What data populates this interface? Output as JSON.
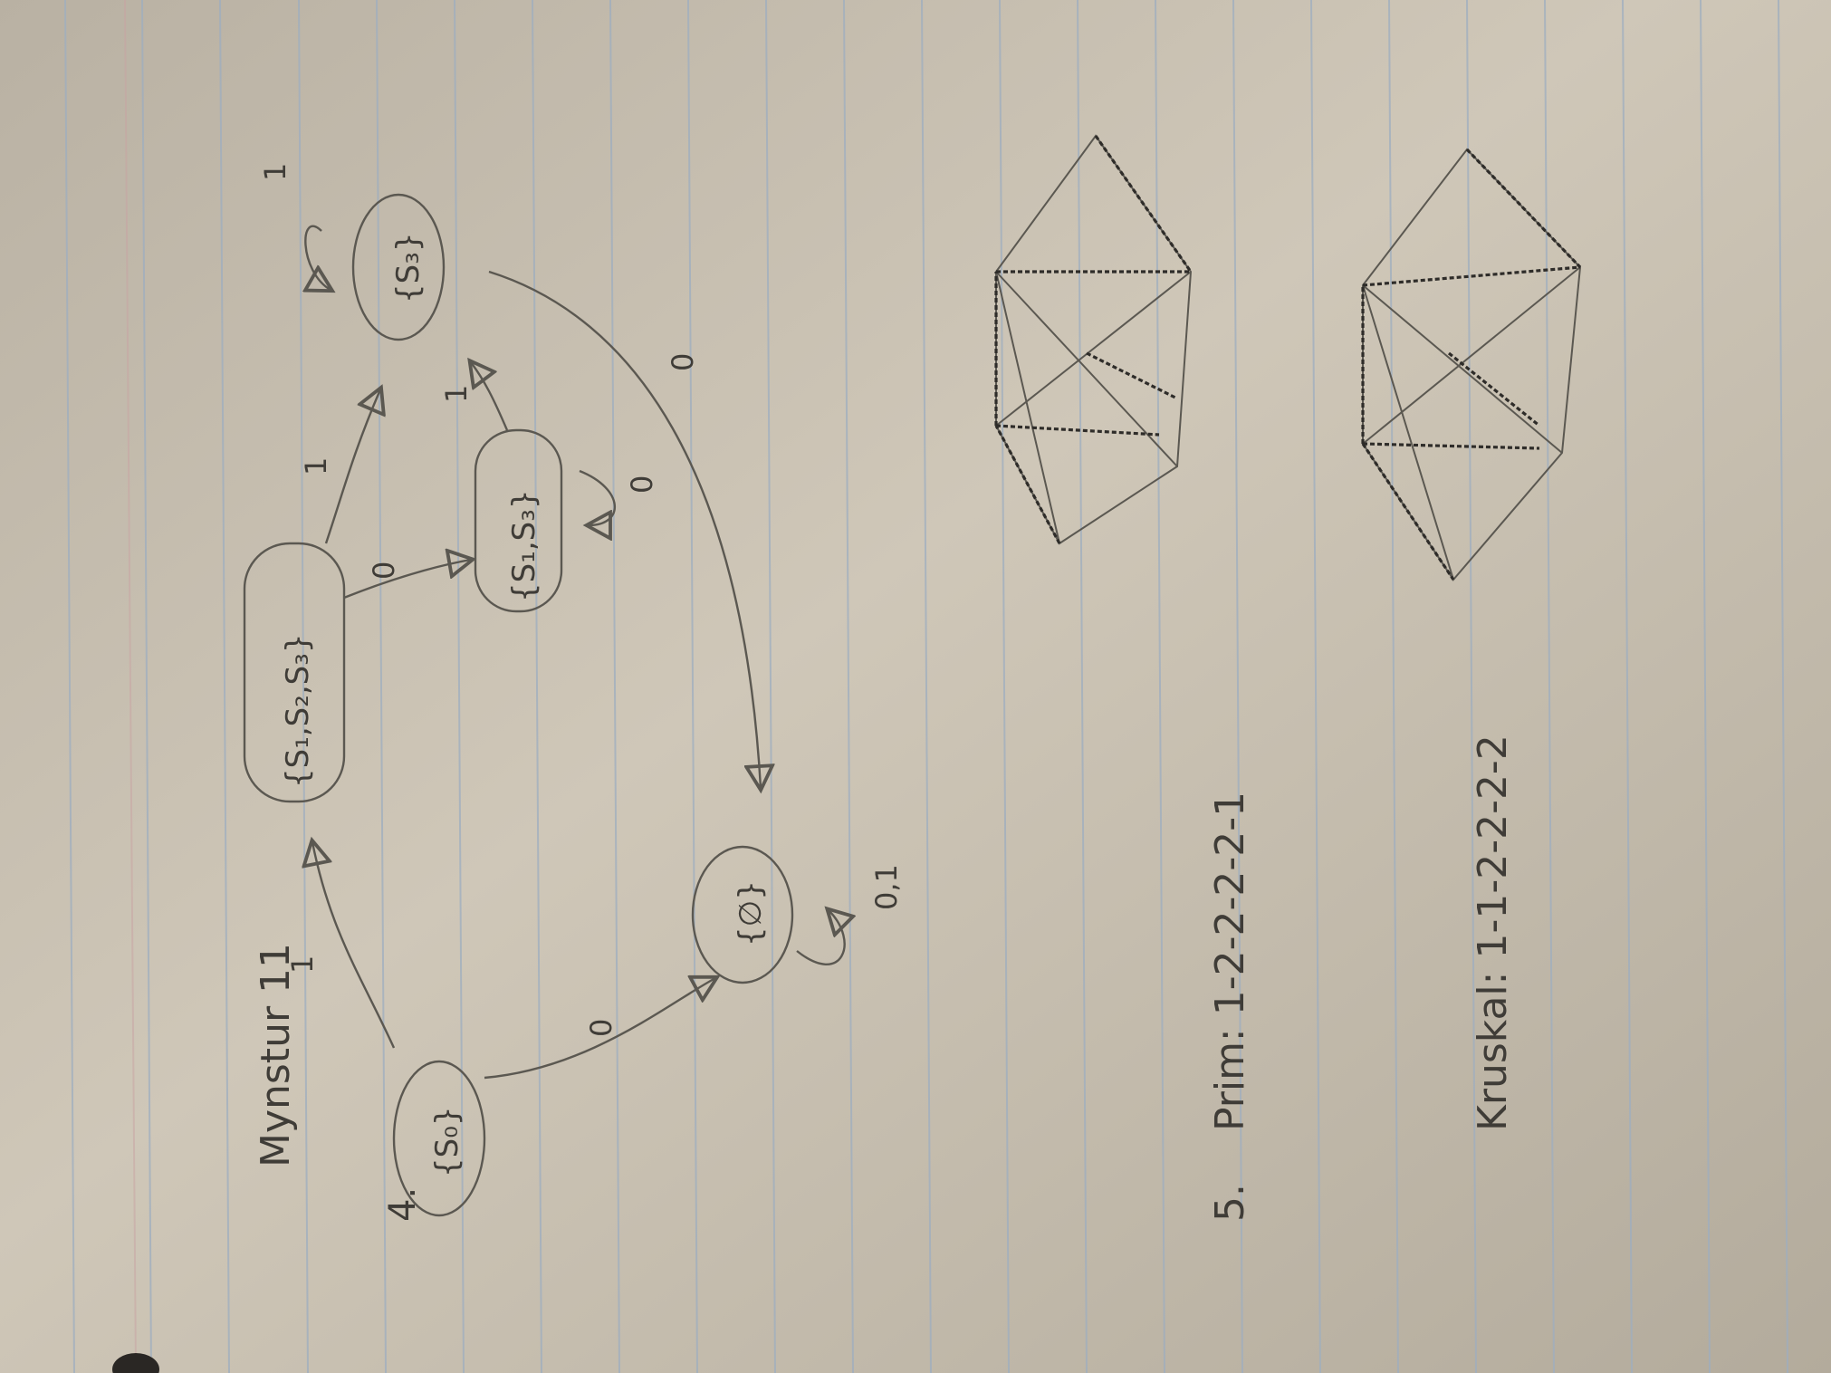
{
  "page": {
    "title": "Mynstur 11",
    "problem4_label": "4.",
    "problem5_label": "5.",
    "prim": "Prim: 1-2-2-2-2-1",
    "kruskal": "Kruskal: 1-1-2-2-2-2"
  },
  "automaton": {
    "states": {
      "s0": "{S₀}",
      "empty": "{∅}",
      "s012": "{S₁,S₂,S₃}",
      "s13": "{S₁,S₃}",
      "s3": "{S₃}"
    },
    "edge_labels": {
      "s0_to_s012": "1",
      "s0_to_empty": "0",
      "empty_loop": "0,1",
      "s012_to_s13": "0",
      "s012_to_s3": "1",
      "s13_loop": "0",
      "s13_to_s3": "1",
      "s3_loop": "1",
      "s3_to_empty": "0"
    }
  },
  "colors": {
    "paper": "#c9c1b2",
    "rule_line": "#9eaec0",
    "pencil": "#5b5851",
    "dark_pencil": "#2e2c29"
  }
}
